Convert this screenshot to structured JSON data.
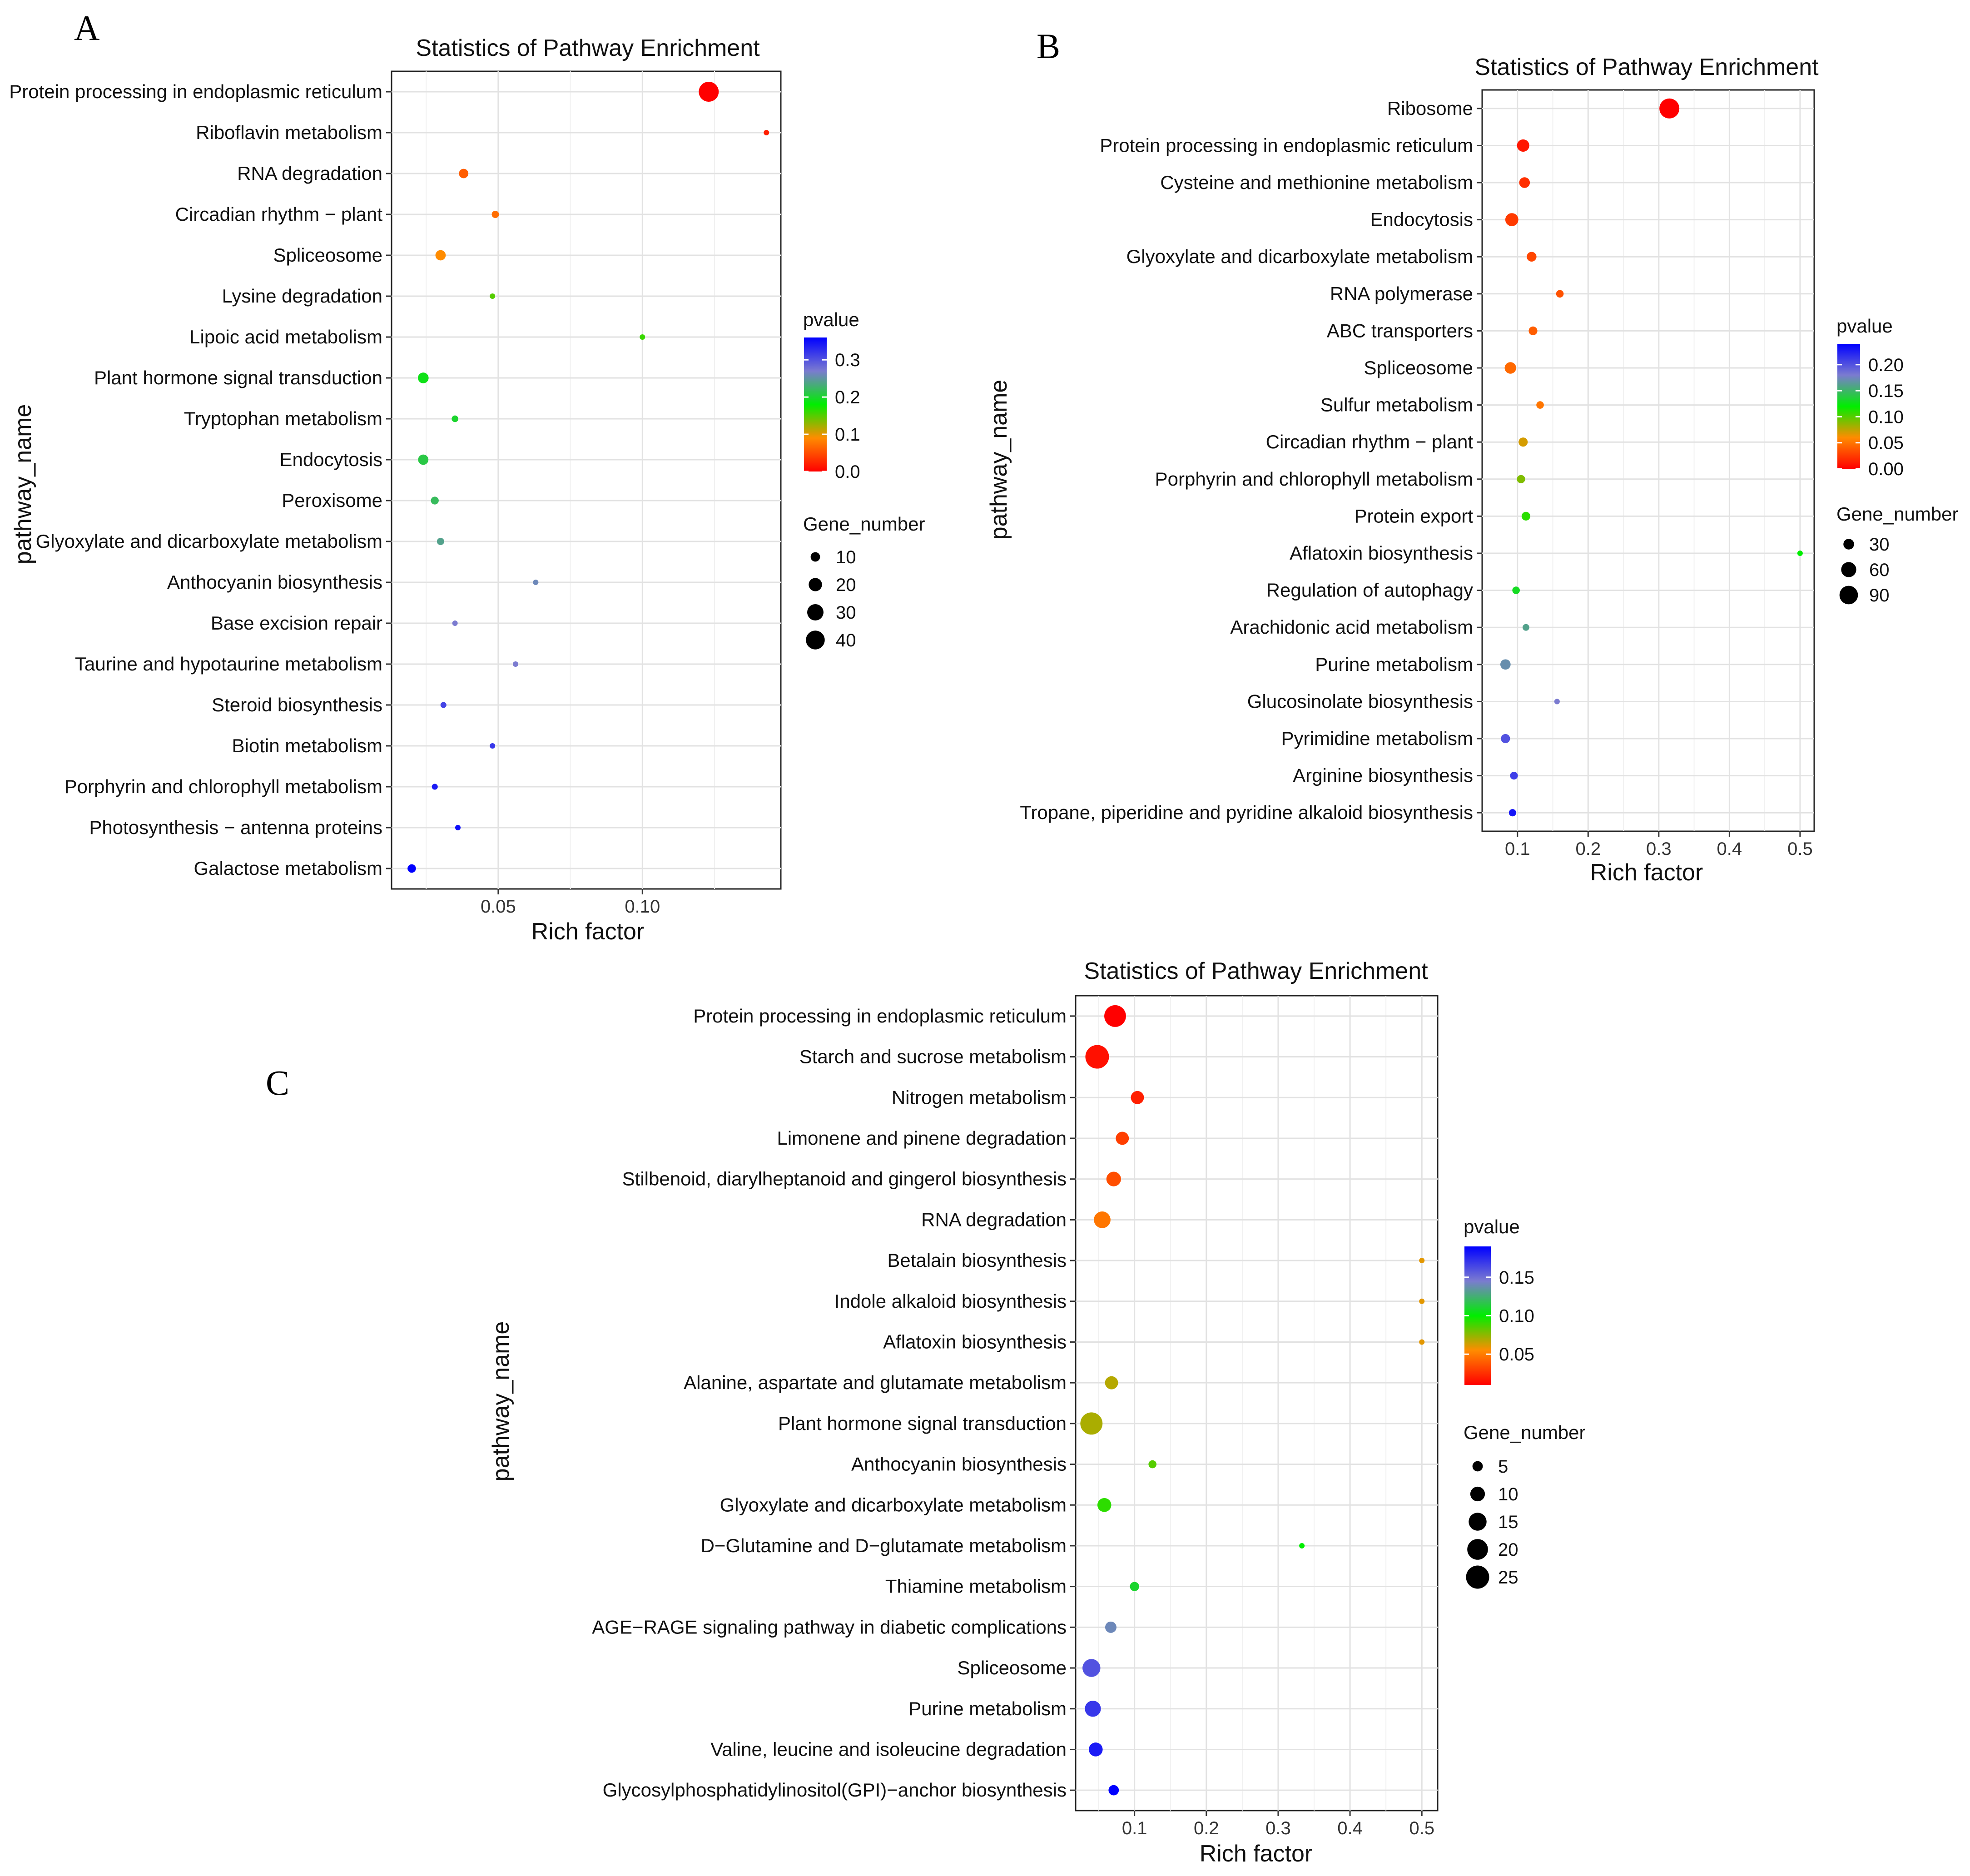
{
  "figure_title": "Statistics of Pathway Enrichment",
  "chart_data": [
    {
      "panel": "A",
      "type": "scatter",
      "title": "Statistics of Pathway Enrichment",
      "xlabel": "Rich factor",
      "ylabel": "pathway_name",
      "xlim": [
        0.013,
        0.148
      ],
      "xticks": [
        0.05,
        0.1
      ],
      "xtick_labels": [
        "0.05",
        "0.10"
      ],
      "grid": true,
      "color_legend": {
        "title": "pvalue",
        "min": 0.0,
        "max": 0.36,
        "ticks": [
          0.3,
          0.2,
          0.1,
          0.0
        ],
        "tick_labels": [
          "0.3",
          "0.2",
          "0.1",
          "0.0"
        ]
      },
      "size_legend": {
        "title": "Gene_number",
        "values": [
          10,
          20,
          30,
          40
        ],
        "labels": [
          "10",
          "20",
          "30",
          "40"
        ],
        "max": 45
      },
      "points": [
        {
          "pathway": "Protein processing in endoplasmic reticulum",
          "rich_factor": 0.123,
          "pvalue": 0.0,
          "gene_number": 45
        },
        {
          "pathway": "Riboflavin metabolism",
          "rich_factor": 0.143,
          "pvalue": 0.02,
          "gene_number": 2
        },
        {
          "pathway": "RNA degradation",
          "rich_factor": 0.038,
          "pvalue": 0.06,
          "gene_number": 10
        },
        {
          "pathway": "Circadian rhythm − plant",
          "rich_factor": 0.049,
          "pvalue": 0.07,
          "gene_number": 6
        },
        {
          "pathway": "Spliceosome",
          "rich_factor": 0.03,
          "pvalue": 0.09,
          "gene_number": 12
        },
        {
          "pathway": "Lysine degradation",
          "rich_factor": 0.048,
          "pvalue": 0.15,
          "gene_number": 3
        },
        {
          "pathway": "Lipoic acid metabolism",
          "rich_factor": 0.1,
          "pvalue": 0.16,
          "gene_number": 1
        },
        {
          "pathway": "Plant hormone signal transduction",
          "rich_factor": 0.024,
          "pvalue": 0.19,
          "gene_number": 13
        },
        {
          "pathway": "Tryptophan metabolism",
          "rich_factor": 0.035,
          "pvalue": 0.2,
          "gene_number": 5
        },
        {
          "pathway": "Endocytosis",
          "rich_factor": 0.024,
          "pvalue": 0.21,
          "gene_number": 12
        },
        {
          "pathway": "Peroxisome",
          "rich_factor": 0.028,
          "pvalue": 0.22,
          "gene_number": 7
        },
        {
          "pathway": "Glyoxylate and dicarboxylate metabolism",
          "rich_factor": 0.03,
          "pvalue": 0.24,
          "gene_number": 6
        },
        {
          "pathway": "Anthocyanin biosynthesis",
          "rich_factor": 0.063,
          "pvalue": 0.26,
          "gene_number": 1
        },
        {
          "pathway": "Base excision repair",
          "rich_factor": 0.035,
          "pvalue": 0.27,
          "gene_number": 3
        },
        {
          "pathway": "Taurine and hypotaurine metabolism",
          "rich_factor": 0.056,
          "pvalue": 0.27,
          "gene_number": 1
        },
        {
          "pathway": "Steroid biosynthesis",
          "rich_factor": 0.031,
          "pvalue": 0.31,
          "gene_number": 4
        },
        {
          "pathway": "Biotin metabolism",
          "rich_factor": 0.048,
          "pvalue": 0.32,
          "gene_number": 1
        },
        {
          "pathway": "Porphyrin and chlorophyll metabolism",
          "rich_factor": 0.028,
          "pvalue": 0.34,
          "gene_number": 4
        },
        {
          "pathway": "Photosynthesis − antenna proteins",
          "rich_factor": 0.036,
          "pvalue": 0.35,
          "gene_number": 1
        },
        {
          "pathway": "Galactose metabolism",
          "rich_factor": 0.02,
          "pvalue": 0.36,
          "gene_number": 8
        }
      ]
    },
    {
      "panel": "B",
      "type": "scatter",
      "title": "Statistics of Pathway Enrichment",
      "xlabel": "Rich factor",
      "ylabel": "pathway_name",
      "xlim": [
        0.05,
        0.52
      ],
      "xticks": [
        0.1,
        0.2,
        0.3,
        0.4,
        0.5
      ],
      "xtick_labels": [
        "0.1",
        "0.2",
        "0.3",
        "0.4",
        "0.5"
      ],
      "grid": true,
      "color_legend": {
        "title": "pvalue",
        "min": 0.0,
        "max": 0.24,
        "ticks": [
          0.2,
          0.15,
          0.1,
          0.05,
          0.0
        ],
        "tick_labels": [
          "0.20",
          "0.15",
          "0.10",
          "0.05",
          "0.00"
        ]
      },
      "size_legend": {
        "title": "Gene_number",
        "values": [
          30,
          60,
          90
        ],
        "labels": [
          "30",
          "60",
          "90"
        ],
        "max": 105
      },
      "points": [
        {
          "pathway": "Ribosome",
          "rich_factor": 0.315,
          "pvalue": 0.0,
          "gene_number": 105
        },
        {
          "pathway": "Protein processing in endoplasmic reticulum",
          "rich_factor": 0.108,
          "pvalue": 0.01,
          "gene_number": 40
        },
        {
          "pathway": "Cysteine and methionine metabolism",
          "rich_factor": 0.11,
          "pvalue": 0.02,
          "gene_number": 30
        },
        {
          "pathway": "Endocytosis",
          "rich_factor": 0.092,
          "pvalue": 0.025,
          "gene_number": 45
        },
        {
          "pathway": "Glyoxylate and dicarboxylate metabolism",
          "rich_factor": 0.12,
          "pvalue": 0.03,
          "gene_number": 25
        },
        {
          "pathway": "RNA polymerase",
          "rich_factor": 0.16,
          "pvalue": 0.035,
          "gene_number": 15
        },
        {
          "pathway": "ABC transporters",
          "rich_factor": 0.122,
          "pvalue": 0.04,
          "gene_number": 20
        },
        {
          "pathway": "Spliceosome",
          "rich_factor": 0.09,
          "pvalue": 0.045,
          "gene_number": 35
        },
        {
          "pathway": "Sulfur metabolism",
          "rich_factor": 0.132,
          "pvalue": 0.05,
          "gene_number": 15
        },
        {
          "pathway": "Circadian rhythm − plant",
          "rich_factor": 0.108,
          "pvalue": 0.07,
          "gene_number": 22
        },
        {
          "pathway": "Porphyrin and chlorophyll metabolism",
          "rich_factor": 0.105,
          "pvalue": 0.09,
          "gene_number": 18
        },
        {
          "pathway": "Protein export",
          "rich_factor": 0.112,
          "pvalue": 0.11,
          "gene_number": 20
        },
        {
          "pathway": "Aflatoxin biosynthesis",
          "rich_factor": 0.5,
          "pvalue": 0.12,
          "gene_number": 3
        },
        {
          "pathway": "Regulation of autophagy",
          "rich_factor": 0.098,
          "pvalue": 0.13,
          "gene_number": 15
        },
        {
          "pathway": "Arachidonic acid metabolism",
          "rich_factor": 0.112,
          "pvalue": 0.16,
          "gene_number": 12
        },
        {
          "pathway": "Purine metabolism",
          "rich_factor": 0.083,
          "pvalue": 0.17,
          "gene_number": 28
        },
        {
          "pathway": "Glucosinolate biosynthesis",
          "rich_factor": 0.156,
          "pvalue": 0.18,
          "gene_number": 8
        },
        {
          "pathway": "Pyrimidine metabolism",
          "rich_factor": 0.083,
          "pvalue": 0.2,
          "gene_number": 22
        },
        {
          "pathway": "Arginine biosynthesis",
          "rich_factor": 0.095,
          "pvalue": 0.21,
          "gene_number": 16
        },
        {
          "pathway": "Tropane, piperidine and pyridine alkaloid biosynthesis",
          "rich_factor": 0.093,
          "pvalue": 0.23,
          "gene_number": 14
        }
      ]
    },
    {
      "panel": "C",
      "type": "scatter",
      "title": "Statistics of Pathway Enrichment",
      "xlabel": "Rich factor",
      "ylabel": "pathway_name",
      "xlim": [
        0.018,
        0.522
      ],
      "xticks": [
        0.1,
        0.2,
        0.3,
        0.4,
        0.5
      ],
      "xtick_labels": [
        "0.1",
        "0.2",
        "0.3",
        "0.4",
        "0.5"
      ],
      "grid": true,
      "color_legend": {
        "title": "pvalue",
        "min": 0.01,
        "max": 0.19,
        "ticks": [
          0.15,
          0.1,
          0.05
        ],
        "tick_labels": [
          "0.15",
          "0.10",
          "0.05"
        ]
      },
      "size_legend": {
        "title": "Gene_number",
        "values": [
          5,
          10,
          15,
          20,
          25
        ],
        "labels": [
          "5",
          "10",
          "15",
          "20",
          "25"
        ],
        "max": 26
      },
      "points": [
        {
          "pathway": "Protein processing in endoplasmic reticulum",
          "rich_factor": 0.073,
          "pvalue": 0.01,
          "gene_number": 22
        },
        {
          "pathway": "Starch and sucrose metabolism",
          "rich_factor": 0.048,
          "pvalue": 0.015,
          "gene_number": 26
        },
        {
          "pathway": "Nitrogen metabolism",
          "rich_factor": 0.104,
          "pvalue": 0.02,
          "gene_number": 8
        },
        {
          "pathway": "Limonene and pinene degradation",
          "rich_factor": 0.083,
          "pvalue": 0.03,
          "gene_number": 8
        },
        {
          "pathway": "Stilbenoid, diarylheptanoid and gingerol biosynthesis",
          "rich_factor": 0.071,
          "pvalue": 0.035,
          "gene_number": 10
        },
        {
          "pathway": "RNA degradation",
          "rich_factor": 0.055,
          "pvalue": 0.048,
          "gene_number": 13
        },
        {
          "pathway": "Betalain biosynthesis",
          "rich_factor": 0.5,
          "pvalue": 0.06,
          "gene_number": 1
        },
        {
          "pathway": "Indole alkaloid biosynthesis",
          "rich_factor": 0.5,
          "pvalue": 0.06,
          "gene_number": 1
        },
        {
          "pathway": "Aflatoxin biosynthesis",
          "rich_factor": 0.5,
          "pvalue": 0.06,
          "gene_number": 1
        },
        {
          "pathway": "Alanine, aspartate and glutamate metabolism",
          "rich_factor": 0.068,
          "pvalue": 0.068,
          "gene_number": 8
        },
        {
          "pathway": "Plant hormone signal transduction",
          "rich_factor": 0.04,
          "pvalue": 0.07,
          "gene_number": 23
        },
        {
          "pathway": "Anthocyanin biosynthesis",
          "rich_factor": 0.125,
          "pvalue": 0.085,
          "gene_number": 3
        },
        {
          "pathway": "Glyoxylate and dicarboxylate metabolism",
          "rich_factor": 0.058,
          "pvalue": 0.092,
          "gene_number": 9
        },
        {
          "pathway": "D−Glutamine and D−glutamate metabolism",
          "rich_factor": 0.333,
          "pvalue": 0.1,
          "gene_number": 1
        },
        {
          "pathway": "Thiamine metabolism",
          "rich_factor": 0.1,
          "pvalue": 0.11,
          "gene_number": 4
        },
        {
          "pathway": "AGE−RAGE signaling pathway in diabetic complications",
          "rich_factor": 0.067,
          "pvalue": 0.14,
          "gene_number": 6
        },
        {
          "pathway": "Spliceosome",
          "rich_factor": 0.04,
          "pvalue": 0.16,
          "gene_number": 15
        },
        {
          "pathway": "Purine metabolism",
          "rich_factor": 0.042,
          "pvalue": 0.17,
          "gene_number": 12
        },
        {
          "pathway": "Valine, leucine and isoleucine degradation",
          "rich_factor": 0.046,
          "pvalue": 0.18,
          "gene_number": 9
        },
        {
          "pathway": "Glycosylphosphatidylinositol(GPI)−anchor biosynthesis",
          "rich_factor": 0.071,
          "pvalue": 0.19,
          "gene_number": 5
        }
      ]
    }
  ]
}
